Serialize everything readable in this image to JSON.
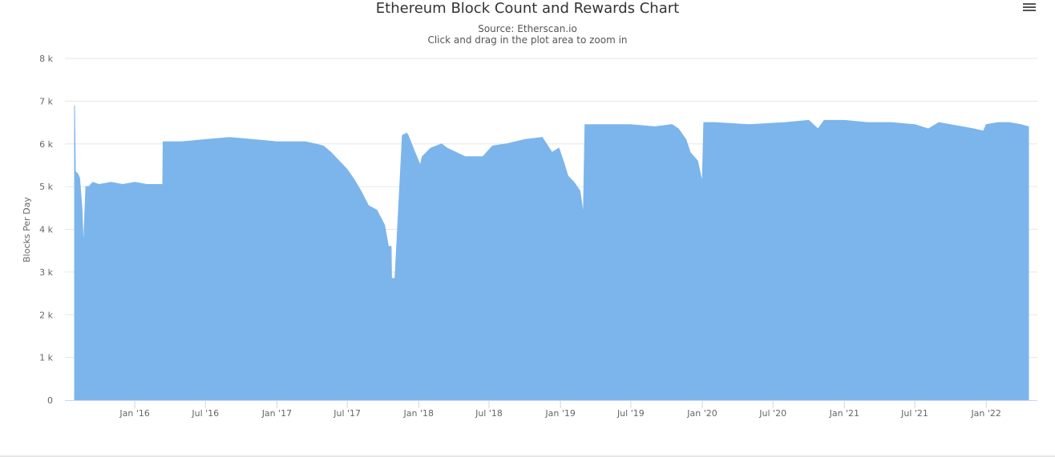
{
  "chart_data": {
    "type": "area",
    "title": "Ethereum Block Count and Rewards Chart",
    "subtitle": "Source: Etherscan.io",
    "instruction": "Click and drag in the plot area to zoom in",
    "ylabel": "Blocks Per Day",
    "xlabel": "",
    "ylim": [
      0,
      8000
    ],
    "xlim": [
      "2015-07-30",
      "2022-04-20"
    ],
    "grid": true,
    "color": "#7cb5ec",
    "y_ticks": [
      {
        "value": 0,
        "label": "0"
      },
      {
        "value": 1000,
        "label": "1 k"
      },
      {
        "value": 2000,
        "label": "2 k"
      },
      {
        "value": 3000,
        "label": "3 k"
      },
      {
        "value": 4000,
        "label": "4 k"
      },
      {
        "value": 5000,
        "label": "5 k"
      },
      {
        "value": 6000,
        "label": "6 k"
      },
      {
        "value": 7000,
        "label": "7 k"
      },
      {
        "value": 8000,
        "label": "8 k"
      }
    ],
    "x_ticks": [
      {
        "date": "2016-01-01",
        "label": "Jan '16"
      },
      {
        "date": "2016-07-01",
        "label": "Jul '16"
      },
      {
        "date": "2017-01-01",
        "label": "Jan '17"
      },
      {
        "date": "2017-07-01",
        "label": "Jul '17"
      },
      {
        "date": "2018-01-01",
        "label": "Jan '18"
      },
      {
        "date": "2018-07-01",
        "label": "Jul '18"
      },
      {
        "date": "2019-01-01",
        "label": "Jan '19"
      },
      {
        "date": "2019-07-01",
        "label": "Jul '19"
      },
      {
        "date": "2020-01-01",
        "label": "Jan '20"
      },
      {
        "date": "2020-07-01",
        "label": "Jul '20"
      },
      {
        "date": "2021-01-01",
        "label": "Jan '21"
      },
      {
        "date": "2021-07-01",
        "label": "Jul '21"
      },
      {
        "date": "2022-01-01",
        "label": "Jan '22"
      }
    ],
    "series": [
      {
        "x": [
          "2015-07-30",
          "2015-08-01",
          "2015-08-07",
          "2015-08-12",
          "2015-08-18",
          "2015-08-22",
          "2015-08-28",
          "2015-09-05",
          "2015-09-15",
          "2015-10-01",
          "2015-11-01",
          "2015-12-01",
          "2016-01-01",
          "2016-02-01",
          "2016-03-01",
          "2016-03-13",
          "2016-03-14",
          "2016-05-01",
          "2016-07-01",
          "2016-09-01",
          "2016-11-01",
          "2017-01-01",
          "2017-02-15",
          "2017-03-15",
          "2017-04-10",
          "2017-05-01",
          "2017-05-20",
          "2017-06-10",
          "2017-07-01",
          "2017-07-20",
          "2017-08-05",
          "2017-08-25",
          "2017-09-15",
          "2017-10-05",
          "2017-10-15",
          "2017-10-22",
          "2017-10-23",
          "2017-11-01",
          "2017-11-20",
          "2017-12-01",
          "2017-12-05",
          "2017-12-20",
          "2018-01-05",
          "2018-01-10",
          "2018-02-01",
          "2018-03-01",
          "2018-03-15",
          "2018-05-01",
          "2018-06-15",
          "2018-07-10",
          "2018-08-15",
          "2018-10-01",
          "2018-11-15",
          "2018-12-10",
          "2018-12-28",
          "2019-01-10",
          "2019-01-20",
          "2019-02-05",
          "2019-02-20",
          "2019-03-01",
          "2019-03-05",
          "2019-05-01",
          "2019-07-01",
          "2019-09-01",
          "2019-10-15",
          "2019-11-01",
          "2019-11-20",
          "2019-12-01",
          "2019-12-20",
          "2020-01-01",
          "2020-01-05",
          "2020-02-01",
          "2020-05-01",
          "2020-08-01",
          "2020-10-01",
          "2020-10-25",
          "2020-11-10",
          "2020-12-01",
          "2021-01-01",
          "2021-03-01",
          "2021-05-01",
          "2021-07-01",
          "2021-08-05",
          "2021-09-01",
          "2021-10-01",
          "2021-11-01",
          "2021-12-01",
          "2021-12-25",
          "2022-01-01",
          "2022-02-01",
          "2022-03-01",
          "2022-04-01",
          "2022-04-20"
        ],
        "y": [
          6900,
          5350,
          5300,
          5200,
          4500,
          3550,
          5000,
          5000,
          5100,
          5050,
          5100,
          5050,
          5100,
          5050,
          5050,
          5050,
          6050,
          6050,
          6100,
          6150,
          6100,
          6050,
          6050,
          6050,
          6000,
          5950,
          5800,
          5600,
          5400,
          5150,
          4900,
          4550,
          4450,
          4100,
          3600,
          3600,
          2850,
          2850,
          6200,
          6250,
          6200,
          5850,
          5500,
          5700,
          5900,
          6000,
          5900,
          5700,
          5700,
          5950,
          6000,
          6100,
          6150,
          5800,
          5900,
          5550,
          5250,
          5100,
          4900,
          4350,
          6450,
          6450,
          6450,
          6400,
          6450,
          6350,
          6100,
          5800,
          5600,
          5100,
          6500,
          6500,
          6450,
          6500,
          6550,
          6350,
          6550,
          6550,
          6550,
          6500,
          6500,
          6450,
          6350,
          6500,
          6450,
          6400,
          6350,
          6300,
          6450,
          6500,
          6500,
          6450,
          6400
        ]
      }
    ]
  }
}
